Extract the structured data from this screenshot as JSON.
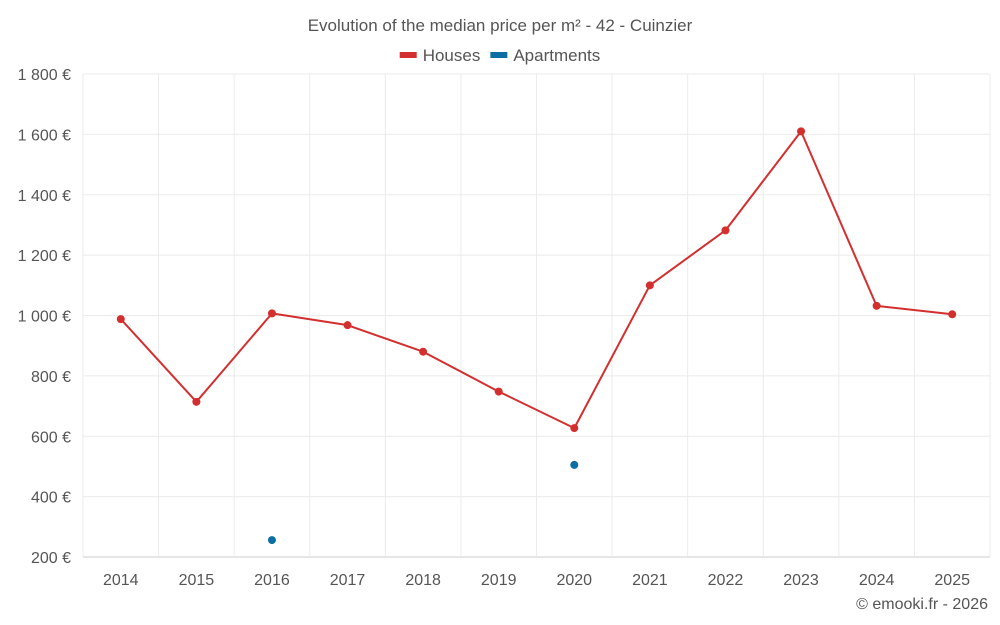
{
  "chart_data": {
    "type": "line",
    "title": "Evolution of the median price per m² - 42 - Cuinzier",
    "categories": [
      "2014",
      "2015",
      "2016",
      "2017",
      "2018",
      "2019",
      "2020",
      "2021",
      "2022",
      "2023",
      "2024",
      "2025"
    ],
    "series": [
      {
        "name": "Houses",
        "color": "#d32f2f",
        "values": [
          988,
          714,
          1007,
          968,
          880,
          748,
          627,
          1100,
          1282,
          1610,
          1032,
          1004
        ]
      },
      {
        "name": "Apartments",
        "color": "#0b6fa4",
        "values": [
          null,
          null,
          256,
          null,
          null,
          null,
          505,
          null,
          null,
          null,
          null,
          null
        ]
      }
    ],
    "ylim": [
      200,
      1800
    ],
    "yticks": [
      200,
      400,
      600,
      800,
      1000,
      1200,
      1400,
      1600,
      1800
    ],
    "ytick_labels": [
      "200 €",
      "400 €",
      "600 €",
      "800 €",
      "1 000 €",
      "1 200 €",
      "1 400 €",
      "1 600 €",
      "1 800 €"
    ],
    "xlabel": "",
    "ylabel": "",
    "grid": true,
    "legend": "top-center"
  },
  "credit": "© emooki.fr - 2026"
}
